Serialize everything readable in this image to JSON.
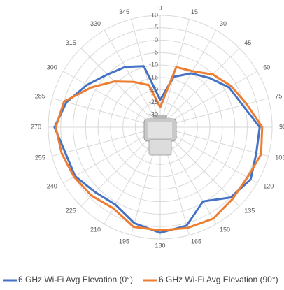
{
  "chart_data": {
    "type": "radar",
    "categories": [
      "0",
      "15",
      "30",
      "45",
      "60",
      "75",
      "90",
      "105",
      "120",
      "135",
      "150",
      "165",
      "180",
      "195",
      "210",
      "225",
      "240",
      "255",
      "270",
      "285",
      "300",
      "315",
      "330",
      "345"
    ],
    "rlim": [
      -35,
      10
    ],
    "rticks": [
      -30,
      -25,
      -20,
      -15,
      -10,
      -5,
      0,
      5,
      10
    ],
    "grid": true,
    "legend": "bottom",
    "series": [
      {
        "name": "6 GHz Wi-Fi Avg Elevation (0°)",
        "color": "#4472c4",
        "values": [
          -24,
          -14,
          -10,
          -7,
          -3,
          -0.7,
          5,
          5,
          7,
          5,
          -0.5,
          6,
          7.5,
          5,
          1,
          2,
          4.5,
          4.5,
          7.5,
          4,
          -1,
          -5,
          -7,
          -9.6
        ]
      },
      {
        "name": "6 GHz Wi-Fi Avg Elevation (90°)",
        "color": "#ed7d31",
        "values": [
          -27,
          -10,
          -9,
          -5,
          -2,
          1,
          6,
          7,
          5.5,
          6,
          7.5,
          7,
          6.5,
          6.5,
          2.7,
          4,
          5,
          6,
          7,
          5,
          -3,
          -9,
          -14,
          -17.5
        ]
      }
    ]
  }
}
